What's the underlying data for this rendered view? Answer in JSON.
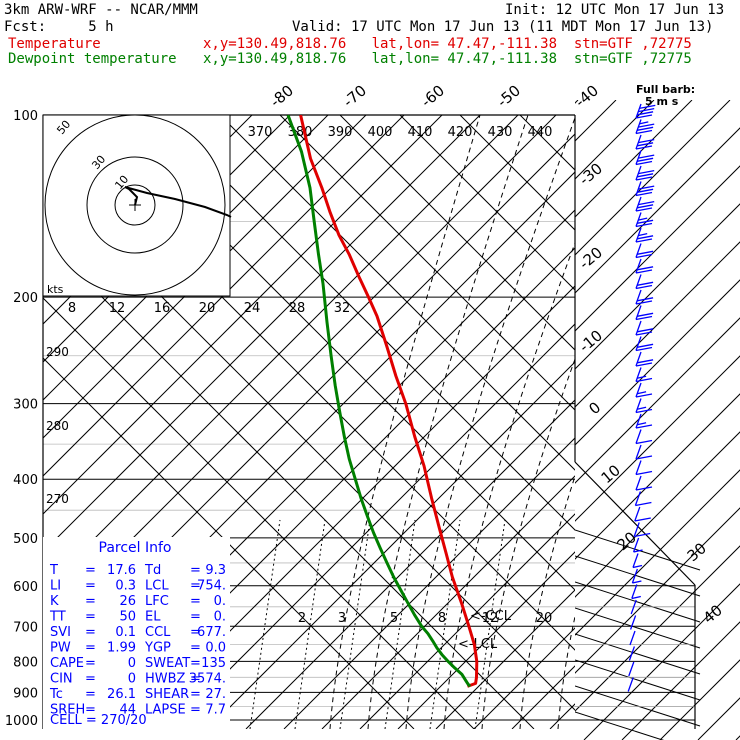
{
  "header": {
    "model": "3km ARW-WRF -- NCAR/MMM",
    "init": "Init: 12 UTC Mon 17 Jun 13",
    "fcst": "Fcst:     5 h",
    "valid": "Valid: 17 UTC Mon 17 Jun 13 (11 MDT Mon 17 Jun 13)",
    "series_lines": [
      {
        "label": "Temperature",
        "loc": "x,y=130.49,818.76   lat,lon= 47.47,-111.38  stn=GTF ,72775",
        "color": "#e00000"
      },
      {
        "label": "Dewpoint temperature",
        "loc": "x,y=130.49,818.76   lat,lon= 47.47,-111.38  stn=GTF ,72775",
        "color": "#008000"
      }
    ],
    "full_barb": "Full barb:",
    "barb_speed": "5 m s"
  },
  "chart_data": {
    "type": "line",
    "pressure_levels": [
      100,
      200,
      300,
      400,
      500,
      600,
      700,
      800,
      900,
      1000
    ],
    "isotherm_labels_top": [
      -80,
      -70,
      -60,
      -50,
      -40
    ],
    "isotherm_labels_right": [
      -30,
      -20,
      -10,
      0,
      10,
      20,
      30,
      40
    ],
    "theta_e_labels": [
      370,
      380,
      390,
      400,
      410,
      420,
      430,
      440
    ],
    "hodo_speed_labels": [
      8,
      12,
      16,
      20,
      24,
      28,
      32
    ],
    "hodo_ring_labels": [
      50,
      30,
      10
    ],
    "hodo_units": "kts",
    "mixing_ratio_labels": [
      2,
      3,
      5,
      8,
      12,
      20
    ],
    "theta_labels": [
      290,
      280,
      270
    ],
    "annotations": [
      "<-LCL",
      "<-CCL"
    ],
    "series": [
      {
        "name": "Temperature",
        "color": "#e00000",
        "points": [
          [
            -32.6,
            880
          ],
          [
            -24.4,
            870
          ],
          [
            -23.5,
            850
          ],
          [
            -23.2,
            800
          ],
          [
            -25.7,
            750
          ],
          [
            -31.1,
            700
          ],
          [
            -38.6,
            640
          ],
          [
            -47.7,
            580
          ],
          [
            -53.9,
            530
          ],
          [
            -60.9,
            480
          ],
          [
            -68.4,
            430
          ],
          [
            -76.0,
            380
          ],
          [
            -85.3,
            340
          ],
          [
            -94.2,
            300
          ],
          [
            -104.1,
            270
          ],
          [
            -113.6,
            240
          ],
          [
            -123.0,
            215
          ],
          [
            -131.5,
            200
          ],
          [
            -141.1,
            185
          ],
          [
            -150.8,
            170
          ],
          [
            -161.0,
            158
          ],
          [
            -169.8,
            145
          ],
          [
            -178.1,
            132
          ],
          [
            -189.5,
            118
          ],
          [
            -199.4,
            100
          ]
        ]
      },
      {
        "name": "Dewpoint temperature",
        "color": "#008000",
        "points": [
          [
            -30.1,
            880
          ],
          [
            -32.4,
            870
          ],
          [
            -34.3,
            860
          ],
          [
            -38.2,
            840
          ],
          [
            -45.3,
            820
          ],
          [
            -51.9,
            800
          ],
          [
            -58.0,
            780
          ],
          [
            -63.1,
            760
          ],
          [
            -67.3,
            740
          ],
          [
            -72.0,
            720
          ],
          [
            -78.3,
            700
          ],
          [
            -85.5,
            670
          ],
          [
            -92.3,
            640
          ],
          [
            -99.2,
            610
          ],
          [
            -106.4,
            580
          ],
          [
            -113.0,
            550
          ],
          [
            -119.7,
            520
          ],
          [
            -126.5,
            490
          ],
          [
            -132.7,
            460
          ],
          [
            -139.0,
            430
          ],
          [
            -144.7,
            400
          ],
          [
            -150.8,
            370
          ],
          [
            -155.7,
            340
          ],
          [
            -160.2,
            310
          ],
          [
            -164.8,
            280
          ],
          [
            -168.9,
            250
          ],
          [
            -173.0,
            220
          ],
          [
            -177.0,
            190
          ],
          [
            -181.5,
            170
          ],
          [
            -185.8,
            150
          ],
          [
            -190.0,
            132
          ],
          [
            -198.5,
            115
          ],
          [
            -212.0,
            100
          ]
        ]
      }
    ],
    "hodograph": [
      [
        0,
        0
      ],
      [
        2,
        -8
      ],
      [
        -6,
        -16
      ],
      [
        -10,
        -18
      ],
      [
        12,
        -12
      ],
      [
        40,
        -6
      ],
      [
        70,
        2
      ],
      [
        92,
        10
      ],
      [
        96,
        12
      ]
    ],
    "wind_barb_speeds_ms": [
      20,
      18,
      17,
      17,
      16,
      15,
      15,
      14,
      13,
      12,
      12,
      11,
      11,
      10,
      10,
      10,
      10,
      9,
      9,
      8,
      8,
      7,
      7,
      7,
      6,
      6,
      5,
      5,
      4,
      4,
      3,
      3,
      2,
      2,
      2,
      1,
      1,
      1
    ]
  },
  "parcel": {
    "title": "Parcel Info",
    "rows": [
      {
        "l1": "T",
        "v1": "17.6",
        "l2": "Td",
        "v2": "9.3"
      },
      {
        "l1": "LI",
        "v1": "0.3",
        "l2": "LCL",
        "v2": "754."
      },
      {
        "l1": "K",
        "v1": "26",
        "l2": "LFC",
        "v2": "0."
      },
      {
        "l1": "TT",
        "v1": "50",
        "l2": "EL",
        "v2": "0."
      },
      {
        "l1": "SVI",
        "v1": "0.1",
        "l2": "CCL",
        "v2": "677."
      },
      {
        "l1": "PW",
        "v1": "1.99",
        "l2": "YGP",
        "v2": "0.0"
      },
      {
        "l1": "CAPE",
        "v1": "0",
        "l2": "SWEAT",
        "v2": "135"
      },
      {
        "l1": "CIN",
        "v1": "0",
        "l2": "HWBZ",
        "v2": "3574."
      },
      {
        "l1": "Tc",
        "v1": "26.1",
        "l2": "SHEAR",
        "v2": "27."
      },
      {
        "l1": "SREH",
        "v1": "44",
        "l2": "LAPSE",
        "v2": "7.7"
      }
    ],
    "cell": "CELL = 270/20"
  }
}
